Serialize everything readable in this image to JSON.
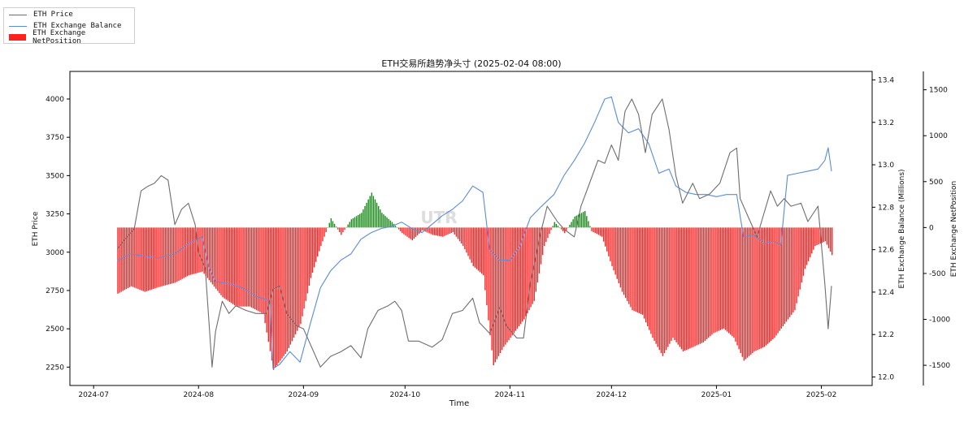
{
  "chart_data": {
    "type": "line",
    "title": "ETH交易所趋势净头寸 (2025-02-04 08:00)",
    "xlabel": "Time",
    "x_ticks": [
      "2024-07",
      "2024-08",
      "2024-09",
      "2024-10",
      "2024-11",
      "2024-12",
      "2025-01",
      "2025-02"
    ],
    "x_range": [
      "2024-06-24",
      "2025-02-16"
    ],
    "y_axes": [
      {
        "name": "ETH Price",
        "label": "ETH Price",
        "ylim": [
          2130,
          4180
        ],
        "ticks": [
          2250,
          2500,
          2750,
          3000,
          3250,
          3500,
          3750,
          4000
        ]
      },
      {
        "name": "ETH Exchange Balance",
        "label": "ETH Exchange Balance (Millions)",
        "ylim": [
          11.96,
          13.44
        ],
        "ticks": [
          "12.0",
          "12.2",
          "12.4",
          "12.6",
          "12.8",
          "13.0",
          "13.2",
          "13.4"
        ]
      },
      {
        "name": "ETH Exchange NetPosition",
        "label": "ETH Exchange NetPosition",
        "ylim": [
          -1720,
          1700
        ],
        "ticks": [
          -1500,
          -1000,
          -500,
          0,
          500,
          1000,
          1500
        ]
      }
    ],
    "legend": {
      "placement": "top-left",
      "entries": [
        "ETH Price",
        "ETH Exchange Balance",
        "ETH Exchange NetPosition"
      ]
    },
    "watermark": "UTR",
    "colors": {
      "price": "#6e6e6e",
      "balance": "#5b8bd8",
      "net_negative": "#ff2020",
      "net_positive": "#1a8a1a"
    },
    "series": [
      {
        "name": "ETH Price",
        "axis": 0,
        "points": [
          [
            "2024-07-08",
            3020
          ],
          [
            "2024-07-10",
            3080
          ],
          [
            "2024-07-13",
            3150
          ],
          [
            "2024-07-15",
            3400
          ],
          [
            "2024-07-17",
            3430
          ],
          [
            "2024-07-19",
            3450
          ],
          [
            "2024-07-21",
            3500
          ],
          [
            "2024-07-23",
            3470
          ],
          [
            "2024-07-25",
            3180
          ],
          [
            "2024-07-27",
            3280
          ],
          [
            "2024-07-29",
            3320
          ],
          [
            "2024-07-31",
            3180
          ],
          [
            "2024-08-01",
            3000
          ],
          [
            "2024-08-03",
            2890
          ],
          [
            "2024-08-05",
            2250
          ],
          [
            "2024-08-06",
            2480
          ],
          [
            "2024-08-08",
            2680
          ],
          [
            "2024-08-10",
            2600
          ],
          [
            "2024-08-12",
            2650
          ],
          [
            "2024-08-15",
            2620
          ],
          [
            "2024-08-18",
            2600
          ],
          [
            "2024-08-21",
            2600
          ],
          [
            "2024-08-23",
            2760
          ],
          [
            "2024-08-25",
            2780
          ],
          [
            "2024-08-27",
            2600
          ],
          [
            "2024-08-30",
            2520
          ],
          [
            "2024-09-01",
            2500
          ],
          [
            "2024-09-03",
            2400
          ],
          [
            "2024-09-06",
            2250
          ],
          [
            "2024-09-09",
            2320
          ],
          [
            "2024-09-12",
            2350
          ],
          [
            "2024-09-15",
            2390
          ],
          [
            "2024-09-18",
            2310
          ],
          [
            "2024-09-20",
            2500
          ],
          [
            "2024-09-23",
            2620
          ],
          [
            "2024-09-26",
            2650
          ],
          [
            "2024-09-28",
            2680
          ],
          [
            "2024-09-30",
            2620
          ],
          [
            "2024-10-02",
            2420
          ],
          [
            "2024-10-05",
            2420
          ],
          [
            "2024-10-09",
            2380
          ],
          [
            "2024-10-12",
            2430
          ],
          [
            "2024-10-15",
            2600
          ],
          [
            "2024-10-18",
            2620
          ],
          [
            "2024-10-21",
            2700
          ],
          [
            "2024-10-23",
            2540
          ],
          [
            "2024-10-26",
            2470
          ],
          [
            "2024-10-29",
            2640
          ],
          [
            "2024-10-31",
            2520
          ],
          [
            "2024-11-03",
            2440
          ],
          [
            "2024-11-05",
            2440
          ],
          [
            "2024-11-07",
            2800
          ],
          [
            "2024-11-10",
            3120
          ],
          [
            "2024-11-12",
            3300
          ],
          [
            "2024-11-15",
            3200
          ],
          [
            "2024-11-17",
            3150
          ],
          [
            "2024-11-20",
            3100
          ],
          [
            "2024-11-22",
            3300
          ],
          [
            "2024-11-24",
            3420
          ],
          [
            "2024-11-27",
            3600
          ],
          [
            "2024-11-29",
            3580
          ],
          [
            "2024-12-01",
            3700
          ],
          [
            "2024-12-03",
            3600
          ],
          [
            "2024-12-05",
            3920
          ],
          [
            "2024-12-07",
            4000
          ],
          [
            "2024-12-09",
            3900
          ],
          [
            "2024-12-11",
            3650
          ],
          [
            "2024-12-13",
            3900
          ],
          [
            "2024-12-16",
            4000
          ],
          [
            "2024-12-18",
            3800
          ],
          [
            "2024-12-20",
            3500
          ],
          [
            "2024-12-22",
            3320
          ],
          [
            "2024-12-25",
            3450
          ],
          [
            "2024-12-27",
            3350
          ],
          [
            "2024-12-30",
            3380
          ],
          [
            "2025-01-02",
            3450
          ],
          [
            "2025-01-05",
            3650
          ],
          [
            "2025-01-07",
            3680
          ],
          [
            "2025-01-08",
            3350
          ],
          [
            "2025-01-10",
            3250
          ],
          [
            "2025-01-13",
            3100
          ],
          [
            "2025-01-15",
            3250
          ],
          [
            "2025-01-17",
            3400
          ],
          [
            "2025-01-19",
            3300
          ],
          [
            "2025-01-21",
            3350
          ],
          [
            "2025-01-23",
            3300
          ],
          [
            "2025-01-26",
            3320
          ],
          [
            "2025-01-28",
            3200
          ],
          [
            "2025-01-31",
            3300
          ],
          [
            "2025-02-02",
            2800
          ],
          [
            "2025-02-03",
            2500
          ],
          [
            "2025-02-04",
            2780
          ]
        ]
      },
      {
        "name": "ETH Exchange Balance",
        "axis": 1,
        "points": [
          [
            "2024-07-08",
            12.55
          ],
          [
            "2024-07-12",
            12.58
          ],
          [
            "2024-07-16",
            12.57
          ],
          [
            "2024-07-20",
            12.56
          ],
          [
            "2024-07-25",
            12.58
          ],
          [
            "2024-07-29",
            12.63
          ],
          [
            "2024-08-02",
            12.66
          ],
          [
            "2024-08-04",
            12.52
          ],
          [
            "2024-08-06",
            12.45
          ],
          [
            "2024-08-10",
            12.44
          ],
          [
            "2024-08-14",
            12.42
          ],
          [
            "2024-08-18",
            12.38
          ],
          [
            "2024-08-22",
            12.36
          ],
          [
            "2024-08-23",
            12.04
          ],
          [
            "2024-08-25",
            12.06
          ],
          [
            "2024-08-28",
            12.12
          ],
          [
            "2024-08-31",
            12.07
          ],
          [
            "2024-09-03",
            12.25
          ],
          [
            "2024-09-06",
            12.42
          ],
          [
            "2024-09-09",
            12.5
          ],
          [
            "2024-09-12",
            12.55
          ],
          [
            "2024-09-15",
            12.58
          ],
          [
            "2024-09-18",
            12.65
          ],
          [
            "2024-09-21",
            12.68
          ],
          [
            "2024-09-24",
            12.7
          ],
          [
            "2024-09-27",
            12.71
          ],
          [
            "2024-09-30",
            12.73
          ],
          [
            "2024-10-03",
            12.7
          ],
          [
            "2024-10-06",
            12.68
          ],
          [
            "2024-10-09",
            12.72
          ],
          [
            "2024-10-12",
            12.76
          ],
          [
            "2024-10-15",
            12.79
          ],
          [
            "2024-10-18",
            12.83
          ],
          [
            "2024-10-21",
            12.9
          ],
          [
            "2024-10-24",
            12.87
          ],
          [
            "2024-10-26",
            12.6
          ],
          [
            "2024-10-29",
            12.55
          ],
          [
            "2024-11-01",
            12.55
          ],
          [
            "2024-11-04",
            12.62
          ],
          [
            "2024-11-07",
            12.75
          ],
          [
            "2024-11-10",
            12.8
          ],
          [
            "2024-11-14",
            12.86
          ],
          [
            "2024-11-17",
            12.95
          ],
          [
            "2024-11-20",
            13.02
          ],
          [
            "2024-11-23",
            13.1
          ],
          [
            "2024-11-26",
            13.2
          ],
          [
            "2024-11-29",
            13.31
          ],
          [
            "2024-12-01",
            13.32
          ],
          [
            "2024-12-03",
            13.2
          ],
          [
            "2024-12-06",
            13.15
          ],
          [
            "2024-12-09",
            13.17
          ],
          [
            "2024-12-12",
            13.1
          ],
          [
            "2024-12-15",
            12.96
          ],
          [
            "2024-12-18",
            12.98
          ],
          [
            "2024-12-20",
            12.9
          ],
          [
            "2024-12-23",
            12.87
          ],
          [
            "2024-12-26",
            12.86
          ],
          [
            "2024-12-29",
            12.86
          ],
          [
            "2025-01-01",
            12.85
          ],
          [
            "2025-01-04",
            12.86
          ],
          [
            "2025-01-07",
            12.86
          ],
          [
            "2025-01-09",
            12.66
          ],
          [
            "2025-01-12",
            12.67
          ],
          [
            "2025-01-15",
            12.63
          ],
          [
            "2025-01-18",
            12.64
          ],
          [
            "2025-01-20",
            12.62
          ],
          [
            "2025-01-22",
            12.95
          ],
          [
            "2025-01-25",
            12.96
          ],
          [
            "2025-01-28",
            12.97
          ],
          [
            "2025-01-31",
            12.98
          ],
          [
            "2025-02-02",
            13.02
          ],
          [
            "2025-02-03",
            13.08
          ],
          [
            "2025-02-04",
            12.97
          ]
        ]
      },
      {
        "name": "ETH Exchange NetPosition",
        "axis": 2,
        "points": [
          [
            "2024-07-08",
            -720
          ],
          [
            "2024-07-12",
            -640
          ],
          [
            "2024-07-16",
            -700
          ],
          [
            "2024-07-20",
            -650
          ],
          [
            "2024-07-25",
            -600
          ],
          [
            "2024-07-29",
            -520
          ],
          [
            "2024-08-02",
            -480
          ],
          [
            "2024-08-05",
            -620
          ],
          [
            "2024-08-08",
            -760
          ],
          [
            "2024-08-12",
            -860
          ],
          [
            "2024-08-16",
            -860
          ],
          [
            "2024-08-20",
            -940
          ],
          [
            "2024-08-23",
            -1550
          ],
          [
            "2024-08-27",
            -1350
          ],
          [
            "2024-08-31",
            -1050
          ],
          [
            "2024-09-03",
            -550
          ],
          [
            "2024-09-06",
            -200
          ],
          [
            "2024-09-09",
            100
          ],
          [
            "2024-09-12",
            -80
          ],
          [
            "2024-09-15",
            90
          ],
          [
            "2024-09-18",
            160
          ],
          [
            "2024-09-21",
            380
          ],
          [
            "2024-09-24",
            160
          ],
          [
            "2024-09-27",
            60
          ],
          [
            "2024-09-30",
            -60
          ],
          [
            "2024-10-03",
            -140
          ],
          [
            "2024-10-06",
            -30
          ],
          [
            "2024-10-09",
            -80
          ],
          [
            "2024-10-12",
            -100
          ],
          [
            "2024-10-15",
            -50
          ],
          [
            "2024-10-18",
            -200
          ],
          [
            "2024-10-21",
            -420
          ],
          [
            "2024-10-24",
            -520
          ],
          [
            "2024-10-27",
            -1500
          ],
          [
            "2024-10-30",
            -1300
          ],
          [
            "2024-11-02",
            -1150
          ],
          [
            "2024-11-05",
            -1000
          ],
          [
            "2024-11-08",
            -800
          ],
          [
            "2024-11-11",
            -200
          ],
          [
            "2024-11-14",
            60
          ],
          [
            "2024-11-17",
            -60
          ],
          [
            "2024-11-20",
            120
          ],
          [
            "2024-11-23",
            180
          ],
          [
            "2024-11-25",
            -40
          ],
          [
            "2024-11-28",
            -100
          ],
          [
            "2024-12-01",
            -420
          ],
          [
            "2024-12-04",
            -700
          ],
          [
            "2024-12-07",
            -900
          ],
          [
            "2024-12-10",
            -950
          ],
          [
            "2024-12-13",
            -1200
          ],
          [
            "2024-12-16",
            -1400
          ],
          [
            "2024-12-19",
            -1200
          ],
          [
            "2024-12-22",
            -1350
          ],
          [
            "2024-12-25",
            -1300
          ],
          [
            "2024-12-28",
            -1250
          ],
          [
            "2024-12-31",
            -1150
          ],
          [
            "2025-01-03",
            -1100
          ],
          [
            "2025-01-06",
            -1200
          ],
          [
            "2025-01-09",
            -1450
          ],
          [
            "2025-01-12",
            -1350
          ],
          [
            "2025-01-15",
            -1300
          ],
          [
            "2025-01-18",
            -1200
          ],
          [
            "2025-01-21",
            -1050
          ],
          [
            "2025-01-24",
            -900
          ],
          [
            "2025-01-27",
            -450
          ],
          [
            "2025-01-30",
            -200
          ],
          [
            "2025-02-02",
            -150
          ],
          [
            "2025-02-04",
            -300
          ]
        ]
      }
    ]
  }
}
